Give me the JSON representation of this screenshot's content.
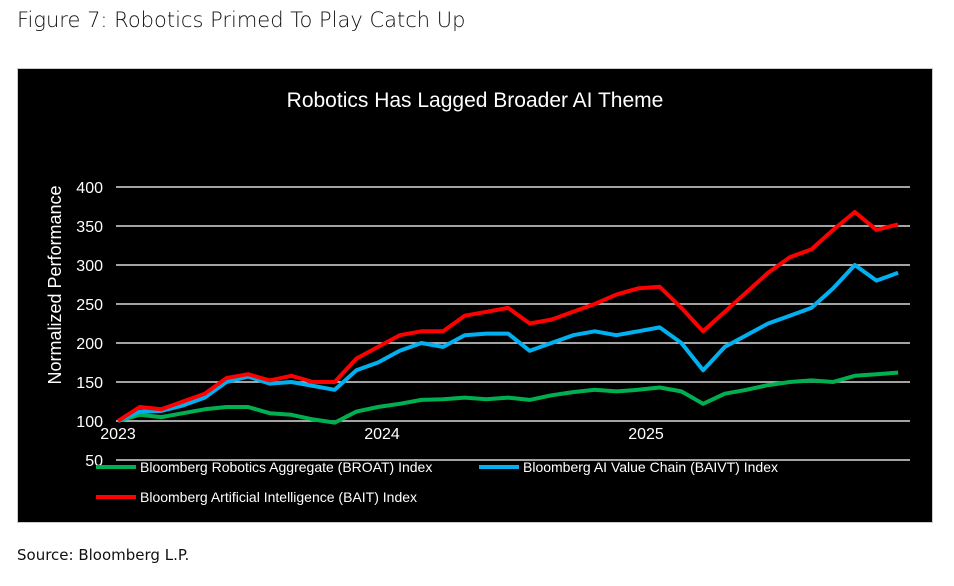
{
  "figure_title": "Figure 7: Robotics Primed To Play Catch Up",
  "source": "Source: Bloomberg L.P.",
  "chart_data": {
    "type": "line",
    "title": "Robotics Has Lagged Broader AI Theme",
    "xlabel": "",
    "ylabel": "Normalized Performance",
    "ylim": [
      50,
      400
    ],
    "yticks": [
      50,
      100,
      150,
      200,
      250,
      300,
      350,
      400
    ],
    "xticks": [
      "2023",
      "2024",
      "2025"
    ],
    "xlim": [
      "2023-01",
      "2025-12"
    ],
    "grid": "horizontal",
    "legend": "bottom",
    "background": "#000000",
    "x": [
      "2023-01",
      "2023-02",
      "2023-03",
      "2023-04",
      "2023-05",
      "2023-06",
      "2023-07",
      "2023-08",
      "2023-09",
      "2023-10",
      "2023-11",
      "2023-12",
      "2024-01",
      "2024-02",
      "2024-03",
      "2024-04",
      "2024-05",
      "2024-06",
      "2024-07",
      "2024-08",
      "2024-09",
      "2024-10",
      "2024-11",
      "2024-12",
      "2025-01",
      "2025-02",
      "2025-03",
      "2025-04",
      "2025-05",
      "2025-06",
      "2025-07",
      "2025-08",
      "2025-09",
      "2025-10",
      "2025-11",
      "2025-12",
      "2026-01"
    ],
    "series": [
      {
        "name": "Bloomberg Robotics Aggregate (BROAT) Index",
        "color": "#00b050",
        "values": [
          100,
          108,
          105,
          110,
          115,
          118,
          118,
          110,
          108,
          102,
          98,
          112,
          118,
          122,
          127,
          128,
          130,
          128,
          130,
          127,
          133,
          137,
          140,
          138,
          140,
          143,
          138,
          122,
          135,
          140,
          146,
          150,
          152,
          150,
          158,
          160,
          162
        ]
      },
      {
        "name": "Bloomberg AI Value Chain (BAIVT) Index",
        "color": "#00b0f0",
        "values": [
          100,
          112,
          113,
          120,
          130,
          150,
          157,
          148,
          150,
          145,
          140,
          165,
          175,
          190,
          200,
          195,
          210,
          212,
          212,
          190,
          200,
          210,
          215,
          210,
          215,
          220,
          200,
          165,
          195,
          210,
          225,
          235,
          245,
          270,
          300,
          280,
          290
        ]
      },
      {
        "name": "Bloomberg Artificial Intelligence (BAIT) Index",
        "color": "#ff0000",
        "values": [
          100,
          118,
          115,
          125,
          135,
          155,
          160,
          152,
          158,
          150,
          150,
          180,
          195,
          210,
          215,
          215,
          235,
          240,
          245,
          225,
          230,
          240,
          250,
          262,
          270,
          272,
          245,
          215,
          240,
          265,
          290,
          310,
          320,
          345,
          368,
          345,
          352
        ]
      }
    ]
  }
}
